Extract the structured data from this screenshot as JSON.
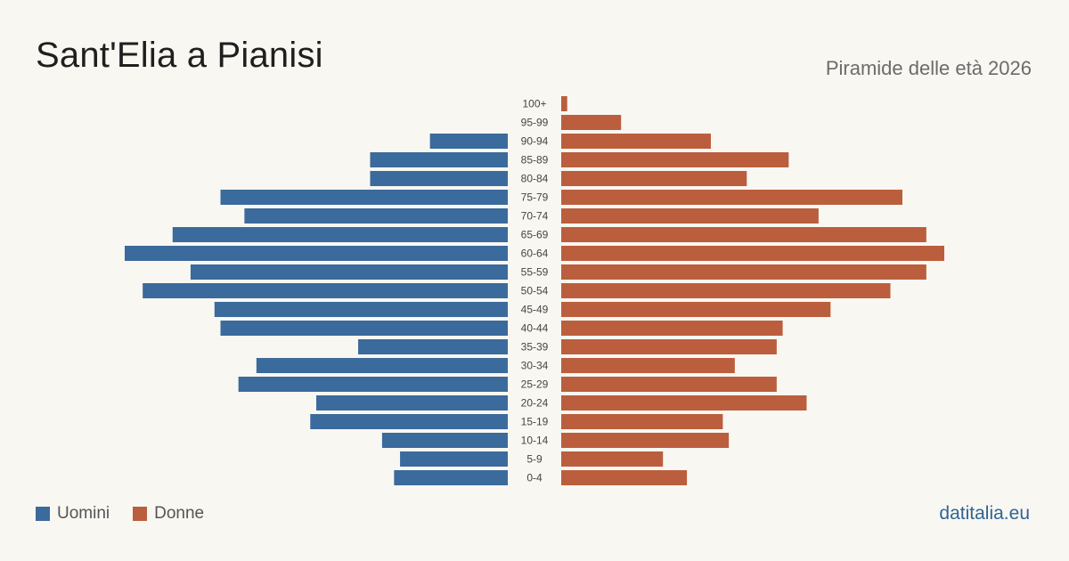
{
  "header": {
    "title": "Sant'Elia a Pianisi",
    "subtitle": "Piramide delle età 2026"
  },
  "legend": {
    "men_label": "Uomini",
    "women_label": "Donne"
  },
  "footer": {
    "brand": "datitalia.eu"
  },
  "colors": {
    "men": "#3b6a9c",
    "women": "#bb5e3d",
    "background": "#f9f7f2"
  },
  "chart_data": {
    "type": "bar",
    "orientation": "horizontal-pyramid",
    "categories": [
      "100+",
      "95-99",
      "90-94",
      "85-89",
      "80-84",
      "75-79",
      "70-74",
      "65-69",
      "60-64",
      "55-59",
      "50-54",
      "45-49",
      "40-44",
      "35-39",
      "30-34",
      "25-29",
      "20-24",
      "15-19",
      "10-14",
      "5-9",
      "0-4"
    ],
    "series": [
      {
        "name": "Uomini",
        "values": [
          0,
          0,
          13,
          23,
          23,
          48,
          44,
          56,
          64,
          53,
          61,
          49,
          48,
          25,
          42,
          45,
          32,
          33,
          21,
          18,
          19
        ]
      },
      {
        "name": "Donne",
        "values": [
          1,
          10,
          25,
          38,
          31,
          57,
          43,
          61,
          64,
          61,
          55,
          45,
          37,
          36,
          29,
          36,
          41,
          27,
          28,
          17,
          21
        ]
      }
    ],
    "xlim": [
      0,
      64
    ]
  }
}
